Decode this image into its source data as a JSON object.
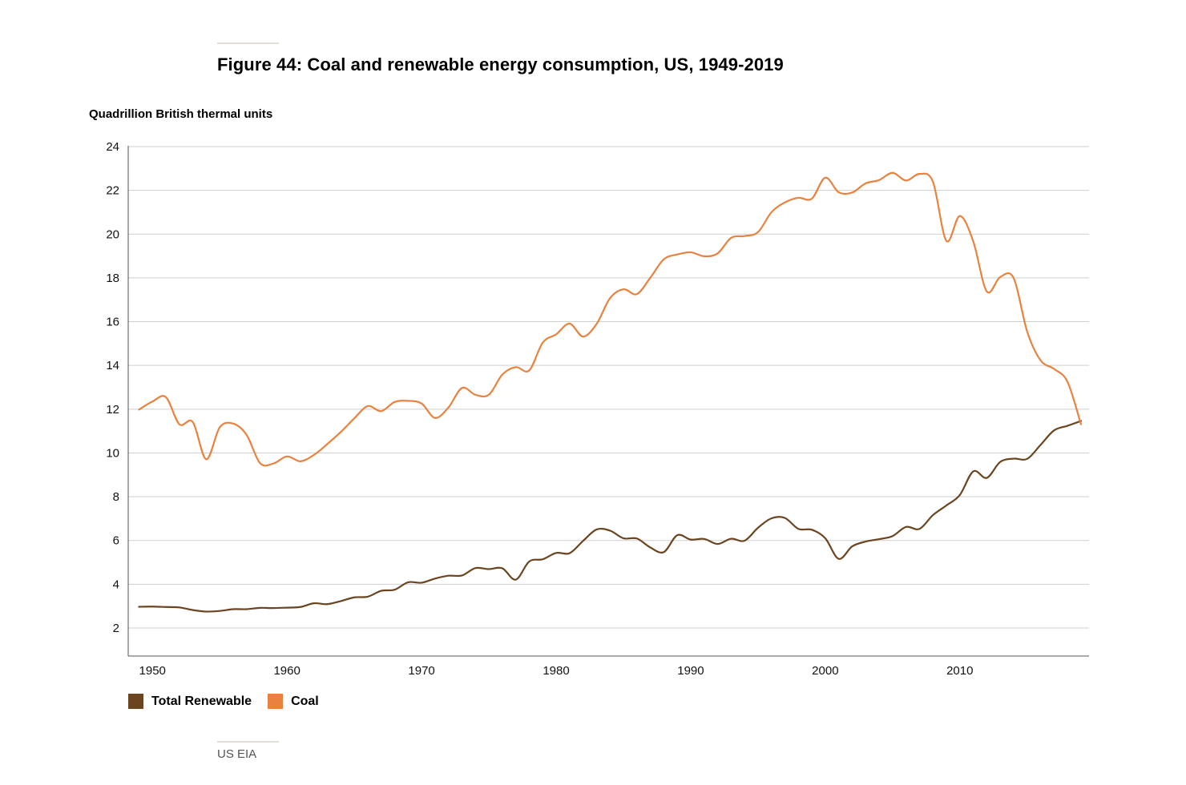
{
  "title": "Figure 44: Coal and renewable energy consumption, US, 1949-2019",
  "source": "US EIA",
  "chart_data": {
    "type": "line",
    "title": "Figure 44: Coal and renewable energy consumption, US, 1949-2019",
    "ylabel": "Quadrillion British thermal units",
    "xlabel": "",
    "xlim": [
      1948.2,
      2019.6
    ],
    "ylim": [
      0,
      24
    ],
    "yticks": [
      2,
      4,
      6,
      8,
      10,
      12,
      14,
      16,
      18,
      20,
      22,
      24
    ],
    "xticks": [
      1950,
      1960,
      1970,
      1980,
      1990,
      2000,
      2010
    ],
    "grid": true,
    "legend_position": "bottom-left",
    "x": [
      1949,
      1950,
      1951,
      1952,
      1953,
      1954,
      1955,
      1956,
      1957,
      1958,
      1959,
      1960,
      1961,
      1962,
      1963,
      1964,
      1965,
      1966,
      1967,
      1968,
      1969,
      1970,
      1971,
      1972,
      1973,
      1974,
      1975,
      1976,
      1977,
      1978,
      1979,
      1980,
      1981,
      1982,
      1983,
      1984,
      1985,
      1986,
      1987,
      1988,
      1989,
      1990,
      1991,
      1992,
      1993,
      1994,
      1995,
      1996,
      1997,
      1998,
      1999,
      2000,
      2001,
      2002,
      2003,
      2004,
      2005,
      2006,
      2007,
      2008,
      2009,
      2010,
      2011,
      2012,
      2013,
      2014,
      2015,
      2016,
      2017,
      2018,
      2019
    ],
    "series": [
      {
        "name": "Total Renewable",
        "color": "#6b4420",
        "values": [
          2.97,
          2.98,
          2.96,
          2.94,
          2.82,
          2.75,
          2.78,
          2.86,
          2.86,
          2.92,
          2.91,
          2.93,
          2.96,
          3.13,
          3.09,
          3.23,
          3.4,
          3.43,
          3.7,
          3.75,
          4.09,
          4.07,
          4.26,
          4.39,
          4.4,
          4.74,
          4.69,
          4.73,
          4.21,
          5.04,
          5.14,
          5.43,
          5.42,
          5.98,
          6.5,
          6.45,
          6.1,
          6.09,
          5.68,
          5.47,
          6.24,
          6.04,
          6.07,
          5.84,
          6.08,
          5.99,
          6.58,
          7.01,
          7.03,
          6.53,
          6.49,
          6.1,
          5.16,
          5.73,
          5.95,
          6.06,
          6.2,
          6.62,
          6.53,
          7.16,
          7.6,
          8.08,
          9.16,
          8.86,
          9.59,
          9.74,
          9.73,
          10.37,
          11.03,
          11.24,
          11.46
        ]
      },
      {
        "name": "Coal",
        "color": "#e8823e",
        "values": [
          11.98,
          12.35,
          12.55,
          11.31,
          11.41,
          9.71,
          11.17,
          11.34,
          10.82,
          9.53,
          9.52,
          9.84,
          9.62,
          9.91,
          10.41,
          10.96,
          11.58,
          12.14,
          11.91,
          12.33,
          12.38,
          12.26,
          11.6,
          12.08,
          12.97,
          12.66,
          12.66,
          13.58,
          13.92,
          13.77,
          15.04,
          15.42,
          15.91,
          15.32,
          15.89,
          17.07,
          17.48,
          17.26,
          18.01,
          18.85,
          19.07,
          19.17,
          18.99,
          19.12,
          19.83,
          19.91,
          20.09,
          21.0,
          21.45,
          21.66,
          21.62,
          22.58,
          21.91,
          21.9,
          22.32,
          22.47,
          22.8,
          22.45,
          22.75,
          22.39,
          19.69,
          20.83,
          19.66,
          17.38,
          18.04,
          17.99,
          15.55,
          14.23,
          13.84,
          13.25,
          11.31
        ]
      }
    ]
  }
}
